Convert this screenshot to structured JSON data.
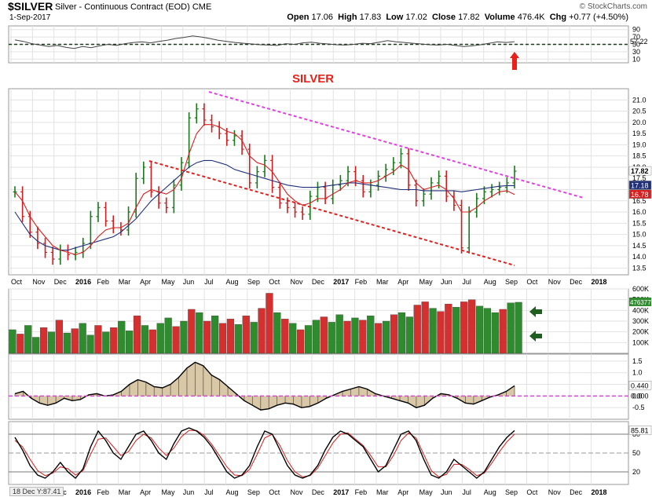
{
  "header": {
    "symbol": "$SILVER",
    "name": "Silver - Continuous Contract (EOD)",
    "exchange": "CME",
    "date": "1-Sep-2017",
    "site": "© StockCharts.com",
    "open_label": "Open",
    "open": "17.06",
    "high_label": "High",
    "high": "17.83",
    "low_label": "Low",
    "low": "17.02",
    "close_label": "Close",
    "close": "17.82",
    "volume_label": "Volume",
    "volume": "476.4K",
    "chg_label": "Chg",
    "chg": "+0.77 (+4.50%)"
  },
  "annotation": {
    "title": "SILVER",
    "color": "#e8221b"
  },
  "footer_note": "18 Dec Y:87.41",
  "x_labels": [
    {
      "t": "Oct",
      "b": false
    },
    {
      "t": "Nov",
      "b": false
    },
    {
      "t": "Dec",
      "b": false
    },
    {
      "t": "2016",
      "b": true
    },
    {
      "t": "Feb",
      "b": false
    },
    {
      "t": "Mar",
      "b": false
    },
    {
      "t": "Apr",
      "b": false
    },
    {
      "t": "May",
      "b": false
    },
    {
      "t": "Jun",
      "b": false
    },
    {
      "t": "Jul",
      "b": false
    },
    {
      "t": "Aug",
      "b": false
    },
    {
      "t": "Sep",
      "b": false
    },
    {
      "t": "Oct",
      "b": false
    },
    {
      "t": "Nov",
      "b": false
    },
    {
      "t": "Dec",
      "b": false
    },
    {
      "t": "2017",
      "b": true
    },
    {
      "t": "Feb",
      "b": false
    },
    {
      "t": "Mar",
      "b": false
    },
    {
      "t": "Apr",
      "b": false
    },
    {
      "t": "May",
      "b": false
    },
    {
      "t": "Jun",
      "b": false
    },
    {
      "t": "Jul",
      "b": false
    },
    {
      "t": "Aug",
      "b": false
    },
    {
      "t": "Sep",
      "b": false
    },
    {
      "t": "Oct",
      "b": false
    },
    {
      "t": "Nov",
      "b": false
    },
    {
      "t": "Dec",
      "b": false
    },
    {
      "t": "2018",
      "b": true
    }
  ],
  "colors": {
    "up": "#1a7a1a",
    "down": "#cc2020",
    "ma_short": "#d42020",
    "ma_long": "#1f2f7a",
    "trend_upper": "#e040e0",
    "trend_lower": "#e02020",
    "arrow_green": "#1e5e1e",
    "arrow_red": "#e8221b"
  },
  "chart_data": [
    {
      "type": "line",
      "panel": "rsi",
      "y_ticks": [
        90,
        70,
        50,
        30,
        10
      ],
      "ylim": [
        0,
        100
      ],
      "last_value": "57.22",
      "threshold": 50,
      "series": [
        {
          "values": [
            62,
            58,
            52,
            48,
            44,
            47,
            42,
            39,
            44,
            41,
            46,
            50,
            47,
            52,
            55,
            57,
            54,
            58,
            61,
            66,
            69,
            73,
            70,
            66,
            61,
            58,
            55,
            53,
            51,
            49,
            48,
            47,
            52,
            50,
            54,
            56,
            53,
            51,
            49,
            48,
            50,
            53,
            52,
            56,
            60,
            57,
            55,
            53,
            51,
            49,
            48,
            50,
            47,
            44,
            46,
            49,
            53,
            57,
            55,
            57.22
          ]
        }
      ]
    },
    {
      "type": "ohlc",
      "panel": "price",
      "title": "SILVER",
      "y_ticks": [
        21.0,
        20.5,
        20.0,
        19.5,
        19.0,
        18.5,
        18.0,
        17.5,
        17.0,
        16.5,
        16.0,
        15.5,
        15.0,
        14.5,
        14.0,
        13.5
      ],
      "ylim": [
        13.2,
        21.5
      ],
      "last_labels": [
        "17.82",
        "17.18",
        "16.78"
      ],
      "close_path": [
        16.9,
        15.8,
        15.1,
        14.6,
        14.2,
        13.9,
        14.3,
        14.1,
        14.2,
        14.6,
        15.8,
        16.2,
        15.6,
        15.3,
        15.2,
        16.0,
        17.5,
        18.0,
        16.9,
        16.4,
        16.2,
        17.2,
        18.2,
        20.2,
        20.6,
        20.1,
        19.8,
        19.5,
        19.2,
        19.4,
        18.8,
        17.3,
        17.8,
        18.3,
        17.1,
        16.4,
        16.2,
        16.0,
        15.9,
        16.7,
        17.1,
        16.6,
        17.2,
        17.4,
        17.8,
        17.4,
        16.9,
        17.2,
        17.6,
        17.9,
        18.2,
        18.6,
        17.2,
        16.5,
        16.8,
        17.3,
        17.6,
        16.7,
        16.3,
        14.4,
        16.0,
        16.6,
        16.9,
        17.0,
        17.1,
        17.3,
        17.82
      ],
      "ma_short": [
        16.9,
        16.5,
        15.8,
        15.3,
        14.9,
        14.5,
        14.3,
        14.2,
        14.1,
        14.2,
        14.5,
        14.9,
        15.2,
        15.3,
        15.3,
        15.5,
        16.2,
        16.8,
        17.0,
        16.9,
        16.8,
        17.0,
        17.5,
        18.6,
        19.5,
        19.9,
        19.9,
        19.8,
        19.6,
        19.5,
        19.2,
        18.5,
        18.2,
        18.1,
        17.8,
        17.3,
        16.8,
        16.5,
        16.3,
        16.4,
        16.6,
        16.6,
        16.8,
        17.0,
        17.3,
        17.4,
        17.3,
        17.3,
        17.4,
        17.6,
        17.8,
        18.1,
        17.9,
        17.3,
        17.0,
        17.1,
        17.2,
        17.0,
        16.6,
        16.0,
        16.0,
        16.2,
        16.5,
        16.7,
        16.9,
        16.95,
        16.78
      ],
      "ma_long": [
        16.0,
        15.5,
        15.0,
        14.7,
        14.5,
        14.4,
        14.3,
        14.3,
        14.4,
        14.5,
        14.6,
        14.7,
        14.8,
        14.9,
        15.1,
        15.4,
        15.7,
        16.1,
        16.5,
        16.8,
        17.1,
        17.4,
        17.7,
        18.0,
        18.2,
        18.3,
        18.3,
        18.2,
        18.1,
        17.9,
        17.8,
        17.7,
        17.6,
        17.5,
        17.4,
        17.3,
        17.2,
        17.15,
        17.1,
        17.1,
        17.1,
        17.15,
        17.2,
        17.25,
        17.3,
        17.3,
        17.25,
        17.2,
        17.15,
        17.1,
        17.05,
        17.0,
        17.0,
        17.0,
        16.95,
        16.95,
        16.95,
        16.95,
        16.95,
        16.9,
        16.95,
        17.0,
        17.05,
        17.1,
        17.15,
        17.18,
        17.18
      ]
    },
    {
      "type": "bar",
      "panel": "volume",
      "y_ticks": [
        "600K",
        "500K",
        "400K",
        "300K",
        "200K",
        "100K"
      ],
      "ylim": [
        0,
        600
      ],
      "last_label": "476377",
      "values": [
        220,
        180,
        260,
        150,
        240,
        200,
        310,
        190,
        230,
        280,
        170,
        260,
        200,
        240,
        300,
        210,
        350,
        260,
        220,
        280,
        330,
        250,
        300,
        410,
        380,
        300,
        350,
        280,
        320,
        270,
        350,
        290,
        420,
        560,
        380,
        320,
        280,
        220,
        260,
        310,
        340,
        290,
        360,
        300,
        330,
        310,
        350,
        280,
        300,
        360,
        380,
        340,
        450,
        480,
        420,
        390,
        460,
        430,
        480,
        500,
        440,
        420,
        380,
        410,
        470,
        476
      ],
      "up_flags": [
        1,
        0,
        1,
        1,
        0,
        1,
        0,
        1,
        0,
        1,
        1,
        0,
        1,
        0,
        1,
        1,
        0,
        1,
        0,
        1,
        1,
        0,
        1,
        0,
        1,
        0,
        1,
        0,
        0,
        1,
        0,
        1,
        0,
        0,
        1,
        0,
        1,
        0,
        1,
        1,
        0,
        1,
        1,
        0,
        1,
        0,
        1,
        0,
        1,
        0,
        1,
        1,
        0,
        0,
        1,
        0,
        0,
        1,
        0,
        0,
        1,
        1,
        1,
        0,
        1,
        1
      ]
    },
    {
      "type": "area",
      "panel": "macd_histogram",
      "y_ticks": [
        1.5,
        1.0,
        0.5,
        0.0,
        -0.5
      ],
      "ylim": [
        -1.0,
        1.8
      ],
      "last_labels": [
        "0.440",
        "0.000"
      ],
      "values": [
        0.1,
        0.2,
        -0.1,
        -0.3,
        -0.4,
        -0.3,
        -0.1,
        -0.2,
        -0.15,
        0.05,
        0.1,
        0.0,
        0.05,
        0.2,
        0.5,
        0.7,
        0.6,
        0.4,
        0.35,
        0.5,
        0.8,
        1.2,
        1.45,
        1.3,
        0.9,
        0.7,
        0.4,
        0.1,
        -0.2,
        -0.4,
        -0.6,
        -0.55,
        -0.4,
        -0.3,
        -0.35,
        -0.5,
        -0.45,
        -0.3,
        -0.1,
        0.05,
        0.2,
        0.3,
        0.4,
        0.3,
        0.1,
        0.0,
        -0.1,
        -0.2,
        -0.3,
        -0.5,
        -0.4,
        -0.1,
        0.1,
        0.05,
        -0.1,
        -0.3,
        -0.35,
        -0.2,
        -0.05,
        0.05,
        0.2,
        0.44
      ]
    },
    {
      "type": "line",
      "panel": "stochastic",
      "y_ticks": [
        80,
        50,
        20
      ],
      "ylim": [
        0,
        100
      ],
      "last_label": "85.81",
      "series": [
        {
          "values": [
            75,
            55,
            30,
            15,
            10,
            20,
            35,
            20,
            10,
            25,
            60,
            85,
            70,
            50,
            40,
            60,
            80,
            85,
            70,
            50,
            40,
            65,
            85,
            90,
            85,
            75,
            60,
            40,
            20,
            10,
            15,
            30,
            60,
            85,
            80,
            55,
            30,
            15,
            10,
            15,
            30,
            55,
            75,
            85,
            80,
            70,
            60,
            40,
            20,
            30,
            55,
            80,
            85,
            70,
            40,
            15,
            10,
            20,
            40,
            30,
            20,
            10,
            20,
            40,
            60,
            75,
            85.81
          ]
        },
        {
          "values": [
            70,
            60,
            40,
            22,
            14,
            18,
            28,
            25,
            15,
            22,
            48,
            72,
            74,
            60,
            46,
            52,
            70,
            80,
            74,
            58,
            46,
            58,
            76,
            86,
            86,
            78,
            64,
            46,
            28,
            15,
            14,
            24,
            48,
            74,
            80,
            62,
            38,
            20,
            12,
            14,
            26,
            46,
            66,
            80,
            82,
            72,
            62,
            46,
            28,
            28,
            46,
            70,
            82,
            74,
            48,
            22,
            12,
            16,
            32,
            32,
            24,
            14,
            18,
            34,
            52,
            68,
            80
          ]
        }
      ]
    }
  ]
}
